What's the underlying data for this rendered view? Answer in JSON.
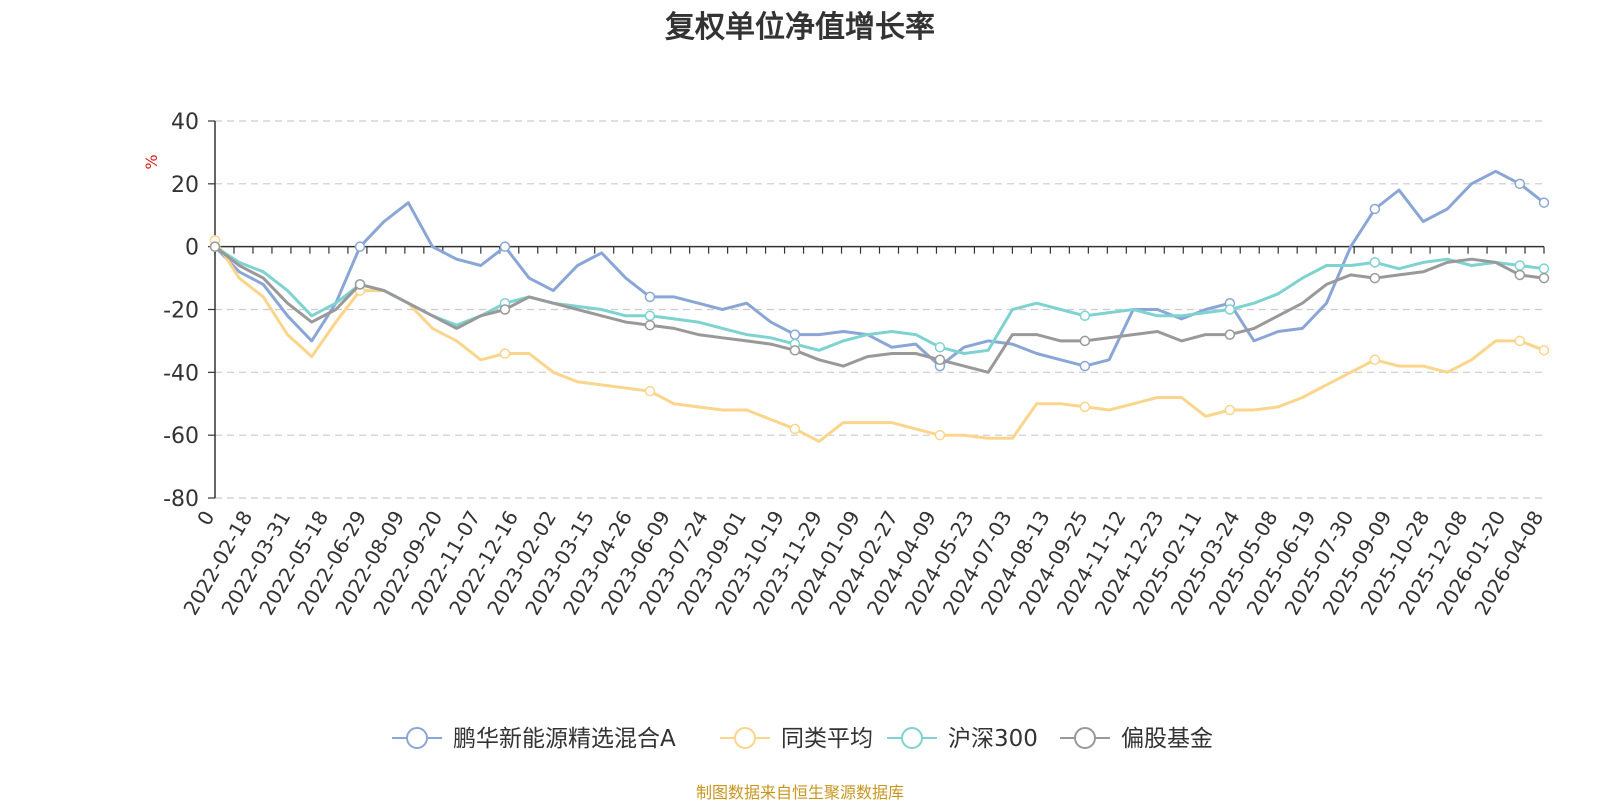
{
  "title": "复权单位净值增长率",
  "source_note": "制图数据来自恒生聚源数据库",
  "colors": {
    "title": "#333333",
    "source": "#c8961e",
    "unit": "#e0201a",
    "axis": "#333333",
    "grid": "#cccccc"
  },
  "chart_data": {
    "type": "line",
    "title": "复权单位净值增长率",
    "ylabel": "%",
    "ylim": [
      -80,
      40
    ],
    "yticks": [
      40,
      20,
      0,
      -20,
      -40,
      -60,
      -80
    ],
    "grid": "horizontal dashed",
    "legend_position": "bottom",
    "x_tick_labels": [
      "0",
      "2022-02-18",
      "2022-03-31",
      "2022-05-18",
      "2022-06-29",
      "2022-08-09",
      "2022-09-20",
      "2022-11-07",
      "2022-12-16",
      "2023-02-02",
      "2023-03-15",
      "2023-04-26",
      "2023-06-09",
      "2023-07-24",
      "2023-09-01",
      "2023-10-19",
      "2023-11-29",
      "2024-01-09",
      "2024-02-27",
      "2024-04-09",
      "2024-05-23",
      "2024-07-03",
      "2024-08-13",
      "2024-09-25",
      "2024-11-12",
      "2024-12-23",
      "2025-02-11",
      "2025-03-24",
      "2025-05-08",
      "2025-06-19",
      "2025-07-30",
      "2025-09-09",
      "2025-10-28",
      "2025-12-08",
      "2026-01-20",
      "2026-04-08"
    ],
    "series": [
      {
        "name": "鹏华新能源精选混合A",
        "color": "#8aa6d6",
        "values": [
          0,
          -8,
          -12,
          -22,
          -30,
          -18,
          0,
          8,
          14,
          0,
          -4,
          -6,
          0,
          -10,
          -14,
          -6,
          -2,
          -10,
          -16,
          -16,
          -18,
          -20,
          -18,
          -24,
          -28,
          -28,
          -27,
          -28,
          -32,
          -31,
          -38,
          -32,
          -30,
          -31,
          -34,
          -36,
          -38,
          -36,
          -20,
          -20,
          -23,
          -20,
          -18,
          -30,
          -27,
          -26,
          -18,
          0,
          12,
          18,
          8,
          12,
          20,
          24,
          20,
          14
        ]
      },
      {
        "name": "同类平均",
        "color": "#fbd58b",
        "values": [
          2,
          -10,
          -16,
          -28,
          -35,
          -24,
          -14,
          -14,
          -18,
          -26,
          -30,
          -36,
          -34,
          -34,
          -40,
          -43,
          -44,
          -45,
          -46,
          -50,
          -51,
          -52,
          -52,
          -55,
          -58,
          -62,
          -56,
          -56,
          -56,
          -58,
          -60,
          -60,
          -61,
          -61,
          -50,
          -50,
          -51,
          -52,
          -50,
          -48,
          -48,
          -54,
          -52,
          -52,
          -51,
          -48,
          -44,
          -40,
          -36,
          -38,
          -38,
          -40,
          -36,
          -30,
          -30,
          -33
        ]
      },
      {
        "name": "沪深300",
        "color": "#7ed3d1",
        "values": [
          0,
          -5,
          -8,
          -14,
          -22,
          -18,
          -12,
          -14,
          -18,
          -22,
          -25,
          -22,
          -18,
          -16,
          -18,
          -19,
          -20,
          -22,
          -22,
          -23,
          -24,
          -26,
          -28,
          -29,
          -31,
          -33,
          -30,
          -28,
          -27,
          -28,
          -32,
          -34,
          -33,
          -20,
          -18,
          -20,
          -22,
          -21,
          -20,
          -22,
          -22,
          -21,
          -20,
          -18,
          -15,
          -10,
          -6,
          -6,
          -5,
          -7,
          -5,
          -4,
          -6,
          -5,
          -6,
          -7
        ]
      },
      {
        "name": "偏股基金",
        "color": "#999999",
        "values": [
          0,
          -6,
          -10,
          -18,
          -24,
          -20,
          -12,
          -14,
          -18,
          -22,
          -26,
          -22,
          -20,
          -16,
          -18,
          -20,
          -22,
          -24,
          -25,
          -26,
          -28,
          -29,
          -30,
          -31,
          -33,
          -36,
          -38,
          -35,
          -34,
          -34,
          -36,
          -38,
          -40,
          -28,
          -28,
          -30,
          -30,
          -29,
          -28,
          -27,
          -30,
          -28,
          -28,
          -26,
          -22,
          -18,
          -12,
          -9,
          -10,
          -9,
          -8,
          -5,
          -4,
          -5,
          -9,
          -10
        ]
      }
    ]
  }
}
